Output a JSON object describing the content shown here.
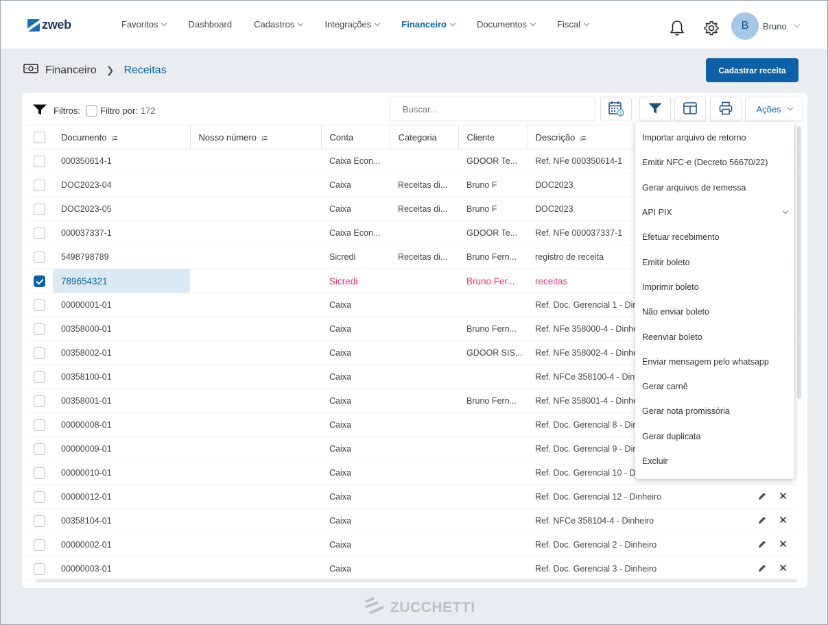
{
  "brand": {
    "logo_text": "zweb"
  },
  "nav": [
    {
      "label": "Favoritos",
      "dropdown": true,
      "active": false
    },
    {
      "label": "Dashboard",
      "dropdown": false,
      "active": false
    },
    {
      "label": "Cadastros",
      "dropdown": true,
      "active": false
    },
    {
      "label": "Integrações",
      "dropdown": true,
      "active": false
    },
    {
      "label": "Financeiro",
      "dropdown": true,
      "active": true
    },
    {
      "label": "Documentos",
      "dropdown": true,
      "active": false
    },
    {
      "label": "Fiscal",
      "dropdown": true,
      "active": false
    }
  ],
  "user": {
    "initial": "B",
    "name": "Bruno"
  },
  "breadcrumb": {
    "parent": "Financeiro",
    "current": "Receitas"
  },
  "primary_action": "Cadastrar receita",
  "filters": {
    "label": "Filtros:",
    "filter_by": "Filtro por:",
    "count": "172"
  },
  "search": {
    "placeholder": "Buscar..."
  },
  "acoes_label": "Ações",
  "columns": [
    "Documento",
    "Nosso número",
    "Conta",
    "Categoria",
    "Cliente",
    "Descrição"
  ],
  "rows": [
    {
      "doc": "000350614-1",
      "nosso": "",
      "conta": "Caixa Econ...",
      "categoria": "",
      "cliente": "GDOOR Te...",
      "descricao": "Ref. NFe 000350614-1",
      "checked": false
    },
    {
      "doc": "DOC2023-04",
      "nosso": "",
      "conta": "Caixa",
      "categoria": "Receitas di...",
      "cliente": "Bruno F",
      "descricao": "DOC2023",
      "checked": false
    },
    {
      "doc": "DOC2023-05",
      "nosso": "",
      "conta": "Caixa",
      "categoria": "Receitas di...",
      "cliente": "Bruno F",
      "descricao": "DOC2023",
      "checked": false
    },
    {
      "doc": "000037337-1",
      "nosso": "",
      "conta": "Caixa Econ...",
      "categoria": "",
      "cliente": "GDOOR Te...",
      "descricao": "Ref. NFe 000037337-1",
      "checked": false
    },
    {
      "doc": "5498798789",
      "nosso": "",
      "conta": "Sicredi",
      "categoria": "Receitas di...",
      "cliente": "Bruno Fern...",
      "descricao": "registro de receita",
      "checked": false
    },
    {
      "doc": "789654321",
      "nosso": "",
      "conta": "Sicredi",
      "categoria": "",
      "cliente": "Bruno Fer...",
      "descricao": "receitas",
      "checked": true
    },
    {
      "doc": "00000001-01",
      "nosso": "",
      "conta": "Caixa",
      "categoria": "",
      "cliente": "",
      "descricao": "Ref. Doc. Gerencial 1 - Dinheiro",
      "checked": false
    },
    {
      "doc": "00358000-01",
      "nosso": "",
      "conta": "Caixa",
      "categoria": "",
      "cliente": "Bruno Fern...",
      "descricao": "Ref. NFe 358000-4 - Dinheiro",
      "checked": false
    },
    {
      "doc": "00358002-01",
      "nosso": "",
      "conta": "Caixa",
      "categoria": "",
      "cliente": "GDOOR SIS...",
      "descricao": "Ref. NFe 358002-4 - Dinheiro",
      "checked": false
    },
    {
      "doc": "00358100-01",
      "nosso": "",
      "conta": "Caixa",
      "categoria": "",
      "cliente": "",
      "descricao": "Ref. NFCe 358100-4 - Dinheiro",
      "checked": false
    },
    {
      "doc": "00358001-01",
      "nosso": "",
      "conta": "Caixa",
      "categoria": "",
      "cliente": "Bruno Fern...",
      "descricao": "Ref. NFe 358001-4 - Dinheiro",
      "checked": false
    },
    {
      "doc": "00000008-01",
      "nosso": "",
      "conta": "Caixa",
      "categoria": "",
      "cliente": "",
      "descricao": "Ref. Doc. Gerencial 8 - Dinheiro",
      "checked": false
    },
    {
      "doc": "00000009-01",
      "nosso": "",
      "conta": "Caixa",
      "categoria": "",
      "cliente": "",
      "descricao": "Ref. Doc. Gerencial 9 - Dinheiro",
      "checked": false
    },
    {
      "doc": "00000010-01",
      "nosso": "",
      "conta": "Caixa",
      "categoria": "",
      "cliente": "",
      "descricao": "Ref. Doc. Gerencial 10 - Dinheiro",
      "checked": false
    },
    {
      "doc": "00000012-01",
      "nosso": "",
      "conta": "Caixa",
      "categoria": "",
      "cliente": "",
      "descricao": "Ref. Doc. Gerencial 12 - Dinheiro",
      "checked": false
    },
    {
      "doc": "00358104-01",
      "nosso": "",
      "conta": "Caixa",
      "categoria": "",
      "cliente": "",
      "descricao": "Ref. NFCe 358104-4 - Dinheiro",
      "checked": false
    },
    {
      "doc": "00000002-01",
      "nosso": "",
      "conta": "Caixa",
      "categoria": "",
      "cliente": "",
      "descricao": "Ref. Doc. Gerencial 2 - Dinheiro",
      "checked": false
    },
    {
      "doc": "00000003-01",
      "nosso": "",
      "conta": "Caixa",
      "categoria": "",
      "cliente": "",
      "descricao": "Ref. Doc. Gerencial 3 - Dinheiro",
      "checked": false
    }
  ],
  "row_icons": {
    "edit": "pencil-icon",
    "delete": "close-icon"
  },
  "actions_menu": [
    {
      "label": "Importar arquivo de retorno",
      "submenu": false
    },
    {
      "label": "Emitir NFC-e (Decreto 56670/22)",
      "submenu": false
    },
    {
      "label": "Gerar arquivos de remessa",
      "submenu": false
    },
    {
      "label": "API PIX",
      "submenu": true
    },
    {
      "label": "Efetuar recebimento",
      "submenu": false
    },
    {
      "label": "Emitir boleto",
      "submenu": false
    },
    {
      "label": "Imprimir boleto",
      "submenu": false
    },
    {
      "label": "Não enviar boleto",
      "submenu": false
    },
    {
      "label": "Reenviar boleto",
      "submenu": false
    },
    {
      "label": "Enviar mensagem pelo whatsapp",
      "submenu": false
    },
    {
      "label": "Gerar carnê",
      "submenu": false
    },
    {
      "label": "Gerar nota promissória",
      "submenu": false
    },
    {
      "label": "Gerar duplicata",
      "submenu": false
    },
    {
      "label": "Excluir",
      "submenu": false
    }
  ],
  "footer": {
    "logo_text": "ZUCCHETTI"
  },
  "colors": {
    "primary": "#0d5fa6",
    "selected_text": "#e6356b",
    "selected_bg": "#dbe9f5"
  }
}
